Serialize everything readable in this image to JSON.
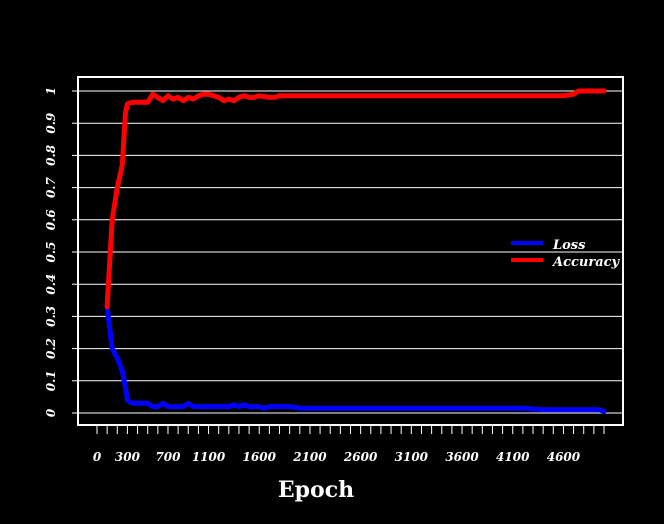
{
  "chart_data": {
    "type": "line",
    "title": "",
    "xlabel": "Epoch",
    "ylabel": "",
    "xlim": [
      0,
      5000
    ],
    "ylim": [
      0,
      1
    ],
    "y_ticks": [
      "0",
      "0.1",
      "0.2",
      "0.3",
      "0.4",
      "0.5",
      "0.6",
      "0.7",
      "0.8",
      "0.9",
      "1"
    ],
    "x_tick_labels": [
      "0",
      "300",
      "700",
      "1100",
      "1600",
      "2100",
      "2600",
      "3100",
      "3600",
      "4100",
      "4600"
    ],
    "x_tick_label_values": [
      0,
      300,
      700,
      1100,
      1600,
      2100,
      2600,
      3100,
      3600,
      4100,
      4600
    ],
    "x_minor_ticks": [
      0,
      100,
      200,
      300,
      400,
      500,
      600,
      700,
      800,
      900,
      1000,
      1100,
      1200,
      1300,
      1400,
      1500,
      1600,
      1700,
      1800,
      1900,
      2000,
      2100,
      2200,
      2300,
      2400,
      2500,
      2600,
      2700,
      2800,
      2900,
      3000,
      3100,
      3200,
      3300,
      3400,
      3500,
      3600,
      3700,
      3800,
      3900,
      4000,
      4100,
      4200,
      4300,
      4400,
      4500,
      4600,
      4700,
      4800,
      4900,
      5000
    ],
    "grid": "horizontal",
    "legend_position": "right",
    "series": [
      {
        "name": "Loss",
        "color": "#0000ff",
        "x": [
          100,
          150,
          200,
          250,
          280,
          300,
          350,
          400,
          450,
          500,
          550,
          600,
          650,
          700,
          750,
          800,
          850,
          900,
          950,
          1000,
          1100,
          1200,
          1300,
          1350,
          1400,
          1450,
          1500,
          1550,
          1600,
          1650,
          1700,
          1800,
          1900,
          2000,
          2200,
          2500,
          3000,
          3500,
          4000,
          4200,
          4400,
          4600,
          4800,
          4950,
          5000
        ],
        "y": [
          0.33,
          0.2,
          0.17,
          0.13,
          0.08,
          0.04,
          0.03,
          0.03,
          0.03,
          0.03,
          0.02,
          0.02,
          0.03,
          0.02,
          0.02,
          0.02,
          0.02,
          0.03,
          0.02,
          0.02,
          0.02,
          0.02,
          0.02,
          0.025,
          0.02,
          0.025,
          0.02,
          0.02,
          0.02,
          0.015,
          0.02,
          0.02,
          0.02,
          0.015,
          0.015,
          0.015,
          0.015,
          0.015,
          0.015,
          0.015,
          0.01,
          0.01,
          0.01,
          0.01,
          0.005
        ]
      },
      {
        "name": "Accuracy",
        "color": "#ff0000",
        "x": [
          100,
          150,
          200,
          250,
          280,
          300,
          350,
          400,
          450,
          500,
          550,
          600,
          650,
          700,
          750,
          800,
          850,
          900,
          950,
          1000,
          1050,
          1100,
          1150,
          1200,
          1250,
          1300,
          1350,
          1400,
          1450,
          1500,
          1550,
          1600,
          1700,
          1750,
          1800,
          1900,
          2000,
          2200,
          2500,
          3000,
          3500,
          4000,
          4400,
          4600,
          4700,
          4750,
          4800,
          4950,
          5000
        ],
        "y": [
          0.33,
          0.6,
          0.7,
          0.77,
          0.93,
          0.96,
          0.965,
          0.965,
          0.965,
          0.965,
          0.99,
          0.98,
          0.97,
          0.985,
          0.975,
          0.98,
          0.97,
          0.98,
          0.975,
          0.985,
          0.99,
          0.99,
          0.985,
          0.98,
          0.97,
          0.975,
          0.97,
          0.98,
          0.985,
          0.98,
          0.98,
          0.985,
          0.98,
          0.98,
          0.985,
          0.985,
          0.985,
          0.985,
          0.985,
          0.985,
          0.985,
          0.985,
          0.985,
          0.985,
          0.99,
          1.0,
          1.0,
          1.0,
          1.0
        ]
      }
    ]
  }
}
